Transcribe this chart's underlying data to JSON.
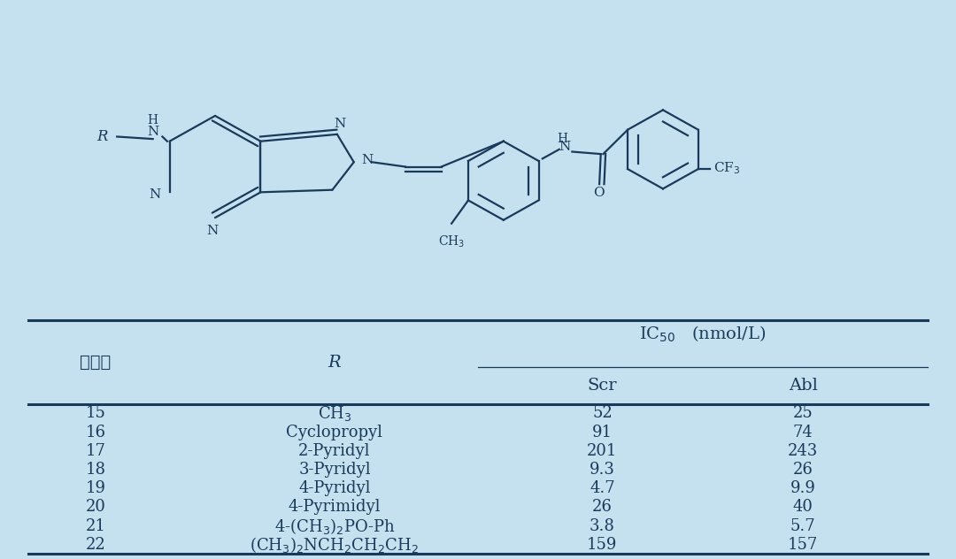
{
  "bg_color": "#c5e0ee",
  "text_color": "#1a3a5c",
  "line_color": "#1a3a5c",
  "fig_width": 10.8,
  "fig_height": 6.32,
  "compounds": [
    "15",
    "16",
    "17",
    "18",
    "19",
    "20",
    "21",
    "22"
  ],
  "R_groups": [
    "CH$_3$",
    "Cyclopropyl",
    "2-Pyridyl",
    "3-Pyridyl",
    "4-Pyridyl",
    "4-Pyrimidyl",
    "4-(CH$_3$)$_2$PO-Ph",
    "(CH$_3$)$_2$NCH$_2$CH$_2$CH$_2$"
  ],
  "Scr": [
    "52",
    "91",
    "201",
    "9.3",
    "4.7",
    "26",
    "3.8",
    "159"
  ],
  "Abl": [
    "25",
    "74",
    "243",
    "26",
    "9.9",
    "40",
    "5.7",
    "157"
  ],
  "header1": "化合物",
  "header2": "R",
  "ic50_label": "IC$_{50}$   (nmol/L)",
  "scr_label": "Scr",
  "abl_label": "Abl",
  "font_size_data": 13,
  "font_size_header": 14
}
